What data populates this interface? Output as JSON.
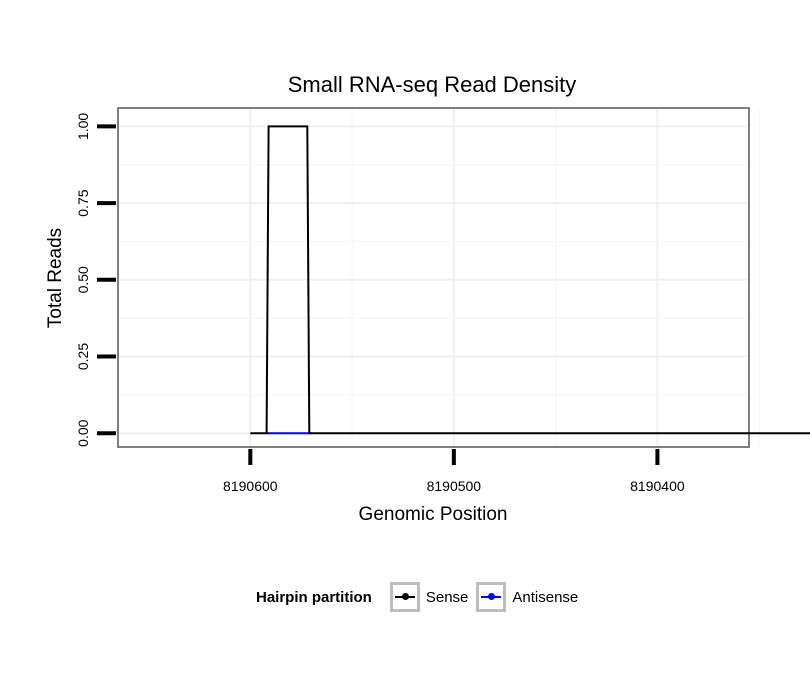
{
  "chart_data": {
    "type": "line",
    "title": "Small RNA-seq Read Density",
    "xlabel": "Genomic Position",
    "ylabel": "Total Reads",
    "x_reversed": true,
    "xlim": [
      8190665,
      8190355
    ],
    "ylim": [
      -0.045,
      1.06
    ],
    "x_ticks": [
      8190600,
      8190500,
      8190400
    ],
    "x_tick_labels": [
      "8190600",
      "8190500",
      "8190400"
    ],
    "y_ticks": [
      0,
      0.25,
      0.5,
      0.75,
      1.0
    ],
    "y_tick_labels": [
      "0.00",
      "0.25",
      "0.50",
      "0.75",
      "1.00"
    ],
    "grid": true,
    "legend_position": "bottom",
    "legend_title": "Hairpin partition",
    "series": [
      {
        "name": "Sense",
        "color": "#000000",
        "x": [
          8190600,
          8190592,
          8190591,
          8190572,
          8190571,
          8190565,
          8190316
        ],
        "values": [
          0,
          0,
          1,
          1,
          0,
          0,
          0
        ]
      },
      {
        "name": "Antisense",
        "color": "#0000ff",
        "x": [
          8190592,
          8190570
        ],
        "values": [
          0,
          0
        ]
      }
    ]
  }
}
